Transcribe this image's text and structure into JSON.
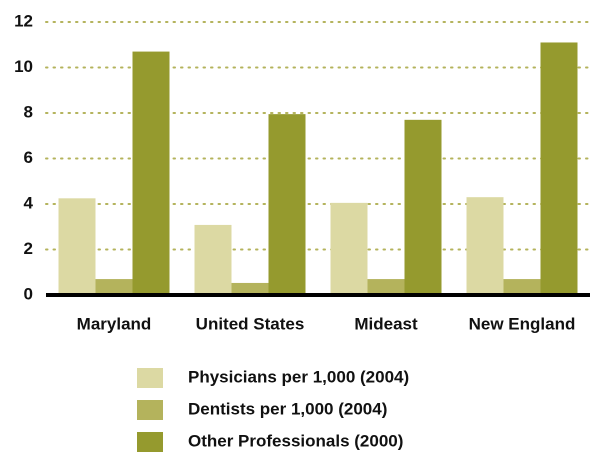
{
  "chart_data": {
    "type": "bar",
    "categories": [
      "Maryland",
      "United States",
      "Mideast",
      "New England"
    ],
    "series": [
      {
        "name": "Physicians per 1,000 (2004)",
        "color": "#dcd9a3",
        "values": [
          4.25,
          3.08,
          4.05,
          4.3
        ]
      },
      {
        "name": "Dentists per 1,000 (2004)",
        "color": "#b4b35c",
        "values": [
          0.7,
          0.53,
          0.7,
          0.7
        ]
      },
      {
        "name": "Other Professionals (2000)",
        "color": "#959a2e",
        "values": [
          10.7,
          7.95,
          7.7,
          11.1
        ]
      }
    ],
    "ylim": [
      0,
      12
    ],
    "yticks": [
      0,
      2,
      4,
      6,
      8,
      10,
      12
    ],
    "grid": true,
    "grid_color": "#b4b35c"
  }
}
